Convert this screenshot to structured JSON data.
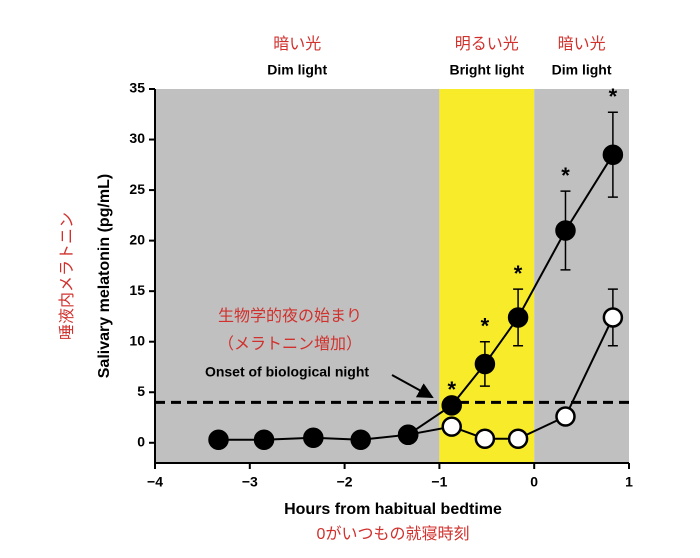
{
  "chart_data": {
    "type": "line",
    "xlabel": "Hours from habitual bedtime",
    "xlabel_ja": "0がいつもの就寝時刻",
    "ylabel": "Salivary melatonin (pg/mL)",
    "ylabel_ja": "唾液内メラトニン",
    "xlim": [
      -4,
      1
    ],
    "ylim": [
      -2,
      35
    ],
    "xticks": [
      {
        "value": -4,
        "label": "−4"
      },
      {
        "value": -3,
        "label": "−3"
      },
      {
        "value": -2,
        "label": "−2"
      },
      {
        "value": -1,
        "label": "−1"
      },
      0,
      1
    ],
    "yticks": [
      0,
      5,
      10,
      15,
      20,
      25,
      30,
      35
    ],
    "regions": [
      {
        "start": -4,
        "end": -1,
        "color": "#c0c0c0",
        "label": "Dim light",
        "label_ja": "暗い光"
      },
      {
        "start": -1,
        "end": 0,
        "color": "#f8ec2a",
        "label": "Bright light",
        "label_ja": "明るい光"
      },
      {
        "start": 0,
        "end": 1,
        "color": "#c0c0c0",
        "label": "Dim light",
        "label_ja": "暗い光"
      }
    ],
    "x": [
      -3.33,
      -2.85,
      -2.33,
      -1.83,
      -1.33,
      -0.87,
      -0.52,
      -0.17,
      0.33,
      0.83
    ],
    "series": [
      {
        "color": "#000000",
        "filled": true,
        "values": [
          0.3,
          0.3,
          0.5,
          0.3,
          0.8,
          3.7,
          7.8,
          12.4,
          21,
          28.5
        ],
        "errors": [
          null,
          null,
          null,
          null,
          null,
          null,
          2.2,
          2.8,
          3.9,
          4.2
        ],
        "value_labels": [
          null,
          null,
          null,
          null,
          null,
          "*",
          "*",
          "*",
          "*",
          "*"
        ]
      },
      {
        "color": "#000000",
        "filled": false,
        "values": [
          null,
          null,
          null,
          null,
          0.8,
          1.6,
          0.4,
          0.4,
          2.6,
          12.4
        ],
        "errors": [
          null,
          null,
          null,
          null,
          null,
          null,
          null,
          null,
          null,
          2.8
        ]
      }
    ],
    "threshold": 4,
    "annotations": [
      "生物学的夜の始まり",
      "（メラトニン増加）",
      "Onset of biological night"
    ]
  }
}
